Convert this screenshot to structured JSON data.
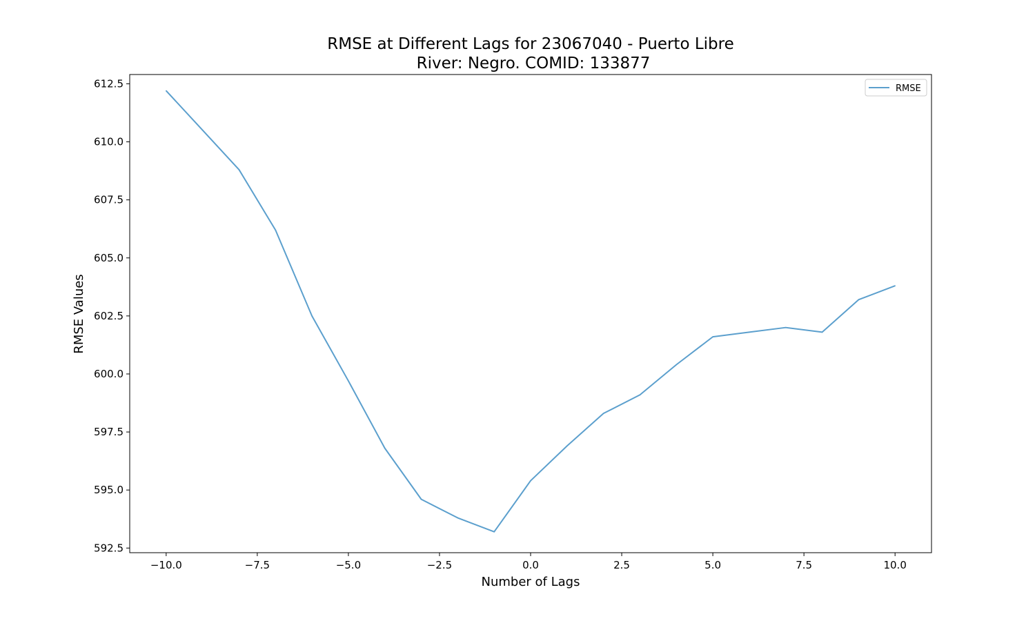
{
  "chart_data": {
    "type": "line",
    "title_line1": "RMSE at Different Lags for 23067040 - Puerto Libre",
    "title_line2": "River: Negro. COMID: 133877",
    "xlabel": "Number of Lags",
    "ylabel": "RMSE Values",
    "xlim": [
      -11.0,
      11.0
    ],
    "ylim": [
      592.3,
      612.9
    ],
    "xticks": [
      -10.0,
      -7.5,
      -5.0,
      -2.5,
      0.0,
      2.5,
      5.0,
      7.5,
      10.0
    ],
    "xtick_labels": [
      "−10.0",
      "−7.5",
      "−5.0",
      "−2.5",
      "0.0",
      "2.5",
      "5.0",
      "7.5",
      "10.0"
    ],
    "yticks": [
      592.5,
      595.0,
      597.5,
      600.0,
      602.5,
      605.0,
      607.5,
      610.0,
      612.5
    ],
    "ytick_labels": [
      "592.5",
      "595.0",
      "597.5",
      "600.0",
      "602.5",
      "605.0",
      "607.5",
      "610.0",
      "612.5"
    ],
    "grid": false,
    "legend_position": "top-right",
    "series": [
      {
        "name": "RMSE",
        "color": "#5b9fcd",
        "x": [
          -10,
          -9,
          -8,
          -7,
          -6,
          -5,
          -4,
          -3,
          -2,
          -1,
          0,
          1,
          2,
          3,
          4,
          5,
          6,
          7,
          8,
          9,
          10
        ],
        "y": [
          612.2,
          610.5,
          608.8,
          606.2,
          602.5,
          599.7,
          596.8,
          594.6,
          593.8,
          593.2,
          595.4,
          596.9,
          598.3,
          599.1,
          600.4,
          601.6,
          601.8,
          602.0,
          601.8,
          603.2,
          603.8
        ]
      }
    ]
  }
}
